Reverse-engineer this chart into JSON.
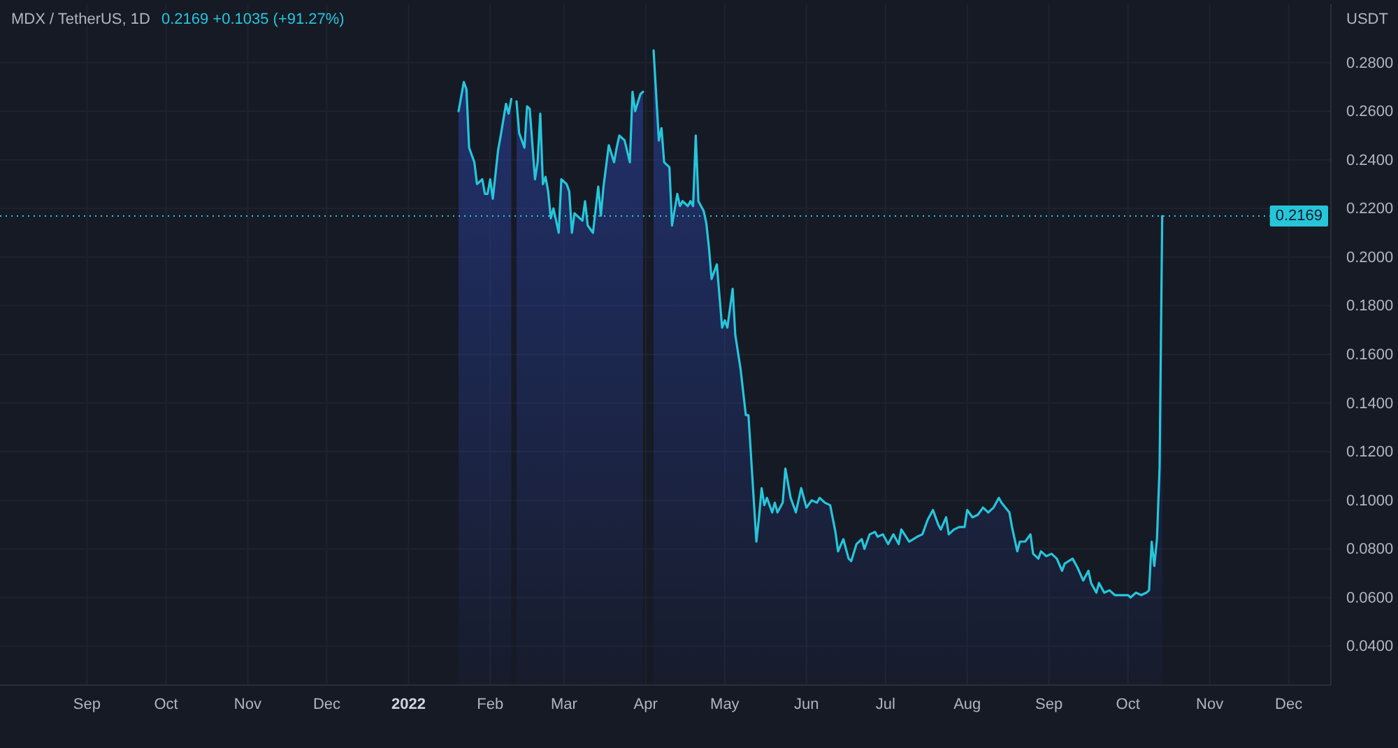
{
  "chart_data": {
    "type": "area",
    "title": "MDX / TetherUS, 1D",
    "subtitle": "0.2169 +0.1035 (+91.27%)",
    "ylabel": "USDT",
    "x": [
      "2022-01-20",
      "2022-01-22",
      "2022-01-23",
      "2022-01-24",
      "2022-01-26",
      "2022-01-27",
      "2022-01-29",
      "2022-01-30",
      "2022-01-31",
      "2022-02-01",
      "2022-02-02",
      "2022-02-04",
      "2022-02-05",
      "2022-02-07",
      "2022-02-08",
      "2022-02-09",
      "2022-02-10",
      "2022-02-11",
      "2022-02-12",
      "2022-02-14",
      "2022-02-15",
      "2022-02-16",
      "2022-02-18",
      "2022-02-19",
      "2022-02-20",
      "2022-02-21",
      "2022-02-22",
      "2022-02-23",
      "2022-02-24",
      "2022-02-25",
      "2022-02-27",
      "2022-02-28",
      "2022-03-02",
      "2022-03-03",
      "2022-03-04",
      "2022-03-05",
      "2022-03-07",
      "2022-03-08",
      "2022-03-09",
      "2022-03-10",
      "2022-03-12",
      "2022-03-14",
      "2022-03-15",
      "2022-03-16",
      "2022-03-18",
      "2022-03-20",
      "2022-03-21",
      "2022-03-22",
      "2022-03-24",
      "2022-03-26",
      "2022-03-27",
      "2022-03-28",
      "2022-03-30",
      "2022-03-31",
      "2022-04-01",
      "2022-04-03",
      "2022-04-04",
      "2022-04-06",
      "2022-04-07",
      "2022-04-08",
      "2022-04-10",
      "2022-04-11",
      "2022-04-13",
      "2022-04-14",
      "2022-04-15",
      "2022-04-17",
      "2022-04-18",
      "2022-04-19",
      "2022-04-20",
      "2022-04-21",
      "2022-04-23",
      "2022-04-24",
      "2022-04-25",
      "2022-04-26",
      "2022-04-28",
      "2022-04-30",
      "2022-05-01",
      "2022-05-02",
      "2022-05-04",
      "2022-05-05",
      "2022-05-07",
      "2022-05-09",
      "2022-05-10",
      "2022-05-13",
      "2022-05-14",
      "2022-05-15",
      "2022-05-16",
      "2022-05-17",
      "2022-05-19",
      "2022-05-20",
      "2022-05-21",
      "2022-05-23",
      "2022-05-24",
      "2022-05-26",
      "2022-05-28",
      "2022-05-30",
      "2022-06-01",
      "2022-06-03",
      "2022-06-05",
      "2022-06-06",
      "2022-06-08",
      "2022-06-10",
      "2022-06-12",
      "2022-06-13",
      "2022-06-15",
      "2022-06-17",
      "2022-06-18",
      "2022-06-20",
      "2022-06-22",
      "2022-06-23",
      "2022-06-25",
      "2022-06-27",
      "2022-06-28",
      "2022-06-30",
      "2022-07-02",
      "2022-07-04",
      "2022-07-06",
      "2022-07-07",
      "2022-07-10",
      "2022-07-13",
      "2022-07-15",
      "2022-07-17",
      "2022-07-19",
      "2022-07-21",
      "2022-07-22",
      "2022-07-24",
      "2022-07-25",
      "2022-07-27",
      "2022-07-29",
      "2022-07-31",
      "2022-08-01",
      "2022-08-03",
      "2022-08-05",
      "2022-08-07",
      "2022-08-09",
      "2022-08-11",
      "2022-08-13",
      "2022-08-14",
      "2022-08-17",
      "2022-08-18",
      "2022-08-20",
      "2022-08-21",
      "2022-08-23",
      "2022-08-25",
      "2022-08-26",
      "2022-08-28",
      "2022-08-29",
      "2022-08-31",
      "2022-09-02",
      "2022-09-04",
      "2022-09-06",
      "2022-09-07",
      "2022-09-10",
      "2022-09-12",
      "2022-09-14",
      "2022-09-16",
      "2022-09-17",
      "2022-09-19",
      "2022-09-20",
      "2022-09-22",
      "2022-09-24",
      "2022-09-26",
      "2022-09-29",
      "2022-10-01",
      "2022-10-02",
      "2022-10-04",
      "2022-10-06",
      "2022-10-08",
      "2022-10-09",
      "2022-10-10",
      "2022-10-11",
      "2022-10-12",
      "2022-10-13",
      "2022-10-14"
    ],
    "values": [
      0.26,
      0.272,
      0.269,
      0.245,
      0.239,
      0.23,
      0.232,
      0.226,
      0.226,
      0.232,
      0.224,
      0.244,
      0.25,
      0.263,
      0.259,
      0.265,
      null,
      0.264,
      0.251,
      0.245,
      0.262,
      0.261,
      0.232,
      0.239,
      0.259,
      0.23,
      0.233,
      0.227,
      0.216,
      0.22,
      0.21,
      0.232,
      0.23,
      0.227,
      0.21,
      0.218,
      0.216,
      0.215,
      0.223,
      0.213,
      0.21,
      0.229,
      0.217,
      0.229,
      0.246,
      0.239,
      0.245,
      0.25,
      0.248,
      0.239,
      0.268,
      0.26,
      0.267,
      0.268,
      null,
      null,
      0.285,
      0.248,
      0.253,
      0.239,
      0.237,
      0.213,
      0.226,
      0.221,
      0.223,
      0.221,
      0.223,
      0.221,
      0.25,
      0.223,
      0.219,
      0.214,
      0.204,
      0.191,
      0.197,
      0.171,
      0.174,
      0.171,
      0.187,
      0.168,
      0.154,
      0.135,
      0.135,
      0.083,
      0.093,
      0.105,
      0.098,
      0.101,
      0.095,
      0.099,
      0.095,
      0.099,
      0.113,
      0.101,
      0.095,
      0.105,
      0.097,
      0.1,
      0.099,
      0.101,
      0.099,
      0.098,
      0.087,
      0.079,
      0.084,
      0.076,
      0.075,
      0.082,
      0.084,
      0.08,
      0.086,
      0.087,
      0.085,
      0.086,
      0.082,
      0.086,
      0.082,
      0.088,
      0.083,
      0.085,
      0.086,
      0.092,
      0.096,
      0.09,
      0.088,
      0.093,
      0.086,
      0.088,
      0.089,
      0.089,
      0.096,
      0.093,
      0.094,
      0.097,
      0.095,
      0.097,
      0.101,
      0.099,
      0.095,
      0.089,
      0.079,
      0.083,
      0.083,
      0.086,
      0.078,
      0.076,
      0.079,
      0.077,
      0.078,
      0.076,
      0.071,
      0.074,
      0.076,
      0.072,
      0.067,
      0.071,
      0.066,
      0.062,
      0.066,
      0.062,
      0.063,
      0.061,
      0.061,
      0.061,
      0.06,
      0.062,
      0.061,
      0.062,
      0.063,
      0.083,
      0.073,
      0.084,
      0.1134,
      0.2169
    ],
    "color": "#26c6da",
    "xlim": [
      "2021-07-30",
      "2022-12-17"
    ],
    "xticks": [
      {
        "value": "2021-09-01",
        "label": "Sep"
      },
      {
        "value": "2021-10-01",
        "label": "Oct"
      },
      {
        "value": "2021-11-01",
        "label": "Nov"
      },
      {
        "value": "2021-12-01",
        "label": "Dec"
      },
      {
        "value": "2022-01-01",
        "label": "2022"
      },
      {
        "value": "2022-02-01",
        "label": "Feb"
      },
      {
        "value": "2022-03-01",
        "label": "Mar"
      },
      {
        "value": "2022-04-01",
        "label": "Apr"
      },
      {
        "value": "2022-05-01",
        "label": "May"
      },
      {
        "value": "2022-06-01",
        "label": "Jun"
      },
      {
        "value": "2022-07-01",
        "label": "Jul"
      },
      {
        "value": "2022-08-01",
        "label": "Aug"
      },
      {
        "value": "2022-09-01",
        "label": "Sep"
      },
      {
        "value": "2022-10-01",
        "label": "Oct"
      },
      {
        "value": "2022-11-01",
        "label": "Nov"
      },
      {
        "value": "2022-12-01",
        "label": "Dec"
      }
    ],
    "ylim": [
      0.024,
      0.304
    ],
    "yticks": [
      {
        "value": 0.04,
        "label": "0.0400"
      },
      {
        "value": 0.06,
        "label": "0.0600"
      },
      {
        "value": 0.08,
        "label": "0.0800"
      },
      {
        "value": 0.1,
        "label": "0.1000"
      },
      {
        "value": 0.12,
        "label": "0.1200"
      },
      {
        "value": 0.14,
        "label": "0.1400"
      },
      {
        "value": 0.16,
        "label": "0.1600"
      },
      {
        "value": 0.18,
        "label": "0.1800"
      },
      {
        "value": 0.2,
        "label": "0.2000"
      },
      {
        "value": 0.22,
        "label": "0.2200"
      },
      {
        "value": 0.24,
        "label": "0.2400"
      },
      {
        "value": 0.26,
        "label": "0.2600"
      },
      {
        "value": 0.28,
        "label": "0.2800"
      }
    ],
    "grid": true,
    "ref_lines": [
      {
        "axis": "y",
        "value": 0.2169,
        "label": "0.2169",
        "color": "#26c6da",
        "line_style": "dotted"
      }
    ]
  }
}
